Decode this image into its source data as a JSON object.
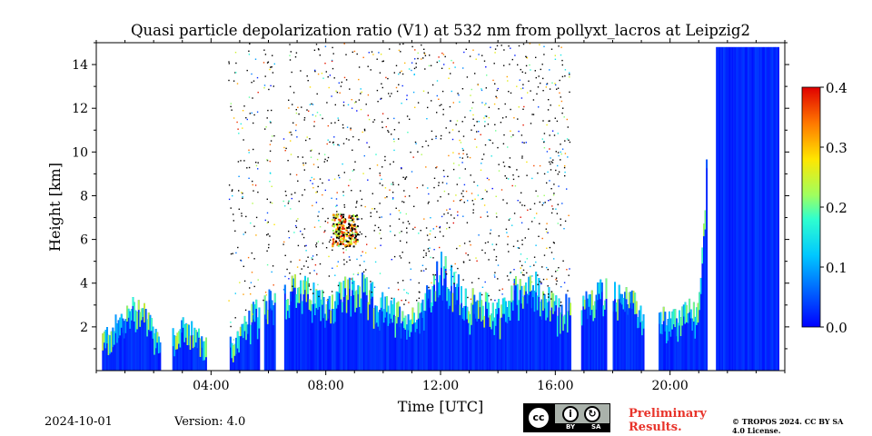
{
  "header": {
    "title": "Quasi particle depolarization ratio (V1) at 532 nm from pollyxt_lacros at Leipzig2"
  },
  "footer": {
    "date": "2024-10-01",
    "version": "Version: 4.0",
    "preliminary": "Preliminary Results.",
    "copyright": "© TROPOS 2024. CC BY SA 4.0 License.",
    "license_badge": {
      "by": "BY",
      "sa": "SA",
      "cc": "cc"
    }
  },
  "chart_data": {
    "type": "heatmap",
    "title": "Quasi particle depolarization ratio (V1) at 532 nm from pollyxt_lacros at Leipzig2",
    "xlabel": "Time [UTC]",
    "ylabel": "Height [km]",
    "xlim": [
      0,
      24
    ],
    "ylim": [
      0,
      15
    ],
    "xticks": [
      4,
      8,
      12,
      16,
      20
    ],
    "xtick_labels": [
      "04:00",
      "08:00",
      "12:00",
      "16:00",
      "20:00"
    ],
    "yticks": [
      2,
      4,
      6,
      8,
      10,
      12,
      14
    ],
    "ytick_labels": [
      "2",
      "4",
      "6",
      "8",
      "10",
      "12",
      "14"
    ],
    "colorbar": {
      "range": [
        0.0,
        0.4
      ],
      "ticks": [
        0.0,
        0.1,
        0.2,
        0.3,
        0.4
      ],
      "tick_labels": [
        "0.0",
        "0.1",
        "0.2",
        "0.3",
        "0.4"
      ],
      "colormap": "jet"
    },
    "gaps_hours": [
      [
        2.25,
        2.6
      ],
      [
        3.8,
        4.6
      ],
      [
        5.65,
        5.8
      ],
      [
        6.2,
        6.5
      ],
      [
        16.55,
        16.9
      ],
      [
        17.8,
        18.0
      ],
      [
        19.1,
        19.6
      ],
      [
        21.3,
        21.6
      ]
    ],
    "boundary_layer_top_km": [
      [
        0.2,
        1.6
      ],
      [
        1.5,
        3.2
      ],
      [
        2.3,
        1.3
      ],
      [
        3.0,
        2.2
      ],
      [
        3.8,
        1.4
      ],
      [
        4.8,
        1.4
      ],
      [
        5.3,
        2.4
      ],
      [
        6.0,
        3.5
      ],
      [
        7.0,
        3.8
      ],
      [
        8.0,
        3.2
      ],
      [
        9.0,
        4.0
      ],
      [
        10.0,
        3.0
      ],
      [
        11.0,
        2.5
      ],
      [
        12.0,
        4.6
      ],
      [
        13.0,
        3.2
      ],
      [
        14.0,
        2.9
      ],
      [
        15.0,
        4.2
      ],
      [
        16.0,
        2.9
      ],
      [
        17.0,
        3.2
      ],
      [
        18.0,
        3.9
      ],
      [
        19.0,
        2.7
      ],
      [
        20.0,
        2.4
      ],
      [
        21.0,
        3.0
      ],
      [
        21.5,
        14.8
      ],
      [
        23.8,
        14.8
      ]
    ],
    "dust_layer": {
      "time_hours": [
        8.2,
        9.1
      ],
      "height_km": [
        5.7,
        7.2
      ],
      "value_max": 0.4
    }
  }
}
